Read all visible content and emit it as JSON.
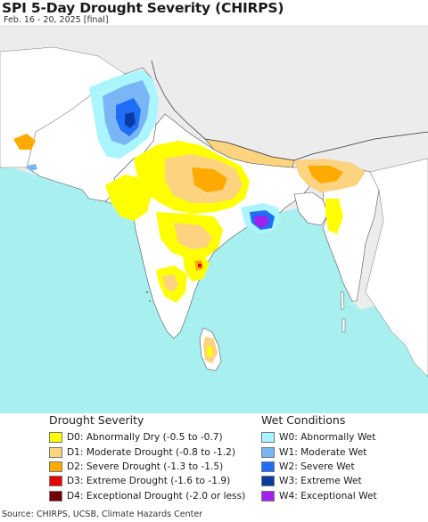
{
  "title": "SPI 5-Day Drought Severity (CHIRPS)",
  "subtitle": "Feb. 16 - 20, 2025 [final]",
  "colors": {
    "ocean": "#a8f0f0",
    "land_background": "#ececec",
    "land_normal": "#ffffff",
    "D0": "#ffff00",
    "D1": "#fcd37f",
    "D2": "#ffaa00",
    "D3": "#e60000",
    "D4": "#730000",
    "W0": "#aaf5ff",
    "W1": "#7ab6f5",
    "W2": "#1f6ef5",
    "W3": "#0a3ca0",
    "W4": "#a020f0"
  },
  "legend": {
    "drought": {
      "heading": "Drought Severity",
      "items": [
        {
          "label": "D0: Abnormally Dry (-0.5 to -0.7)",
          "color": "#ffff00"
        },
        {
          "label": "D1: Moderate Drought (-0.8 to -1.2)",
          "color": "#fcd37f"
        },
        {
          "label": "D2: Severe Drought (-1.3 to -1.5)",
          "color": "#ffaa00"
        },
        {
          "label": "D3: Extreme Drought (-1.6 to -1.9)",
          "color": "#e60000"
        },
        {
          "label": "D4: Exceptional Drought (-2.0 or less)",
          "color": "#730000"
        }
      ]
    },
    "wet": {
      "heading": "Wet Conditions",
      "items": [
        {
          "label": "W0: Abnormally Wet",
          "color": "#aaf5ff"
        },
        {
          "label": "W1: Moderate Wet",
          "color": "#7ab6f5"
        },
        {
          "label": "W2: Severe Wet",
          "color": "#1f6ef5"
        },
        {
          "label": "W3: Extreme Wet",
          "color": "#0a3ca0"
        },
        {
          "label": "W4: Exceptional Wet",
          "color": "#a020f0"
        }
      ]
    }
  },
  "source": "Source: CHIRPS, UCSB, Climate Hazards Center"
}
